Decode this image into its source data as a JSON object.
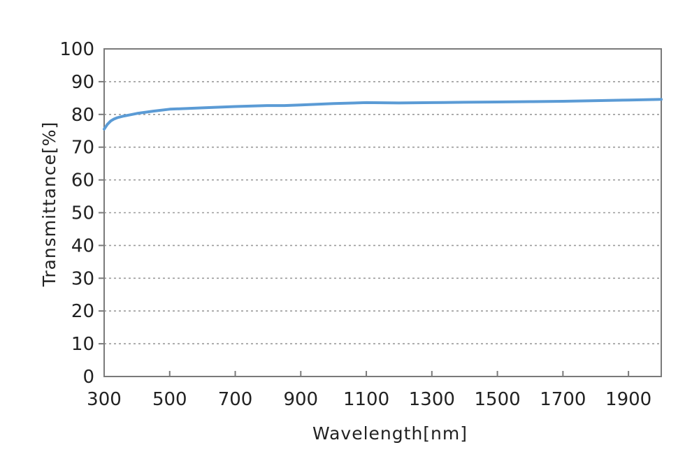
{
  "chart_data": {
    "type": "line",
    "title": "",
    "xlabel": "Wavelength[nm]",
    "ylabel": "Transmittance[%]",
    "xlim": [
      300,
      2000
    ],
    "ylim": [
      0,
      100
    ],
    "xticks": [
      300,
      500,
      700,
      900,
      1100,
      1300,
      1500,
      1700,
      1900
    ],
    "yticks": [
      0,
      10,
      20,
      30,
      40,
      50,
      60,
      70,
      80,
      90,
      100
    ],
    "grid": "horizontal dashed",
    "series": [
      {
        "color": "#5b9bd5",
        "x": [
          300,
          310,
          320,
          330,
          340,
          360,
          380,
          400,
          450,
          500,
          600,
          700,
          800,
          850,
          900,
          1000,
          1100,
          1200,
          1300,
          1400,
          1500,
          1600,
          1700,
          1800,
          1900,
          2000
        ],
        "y": [
          75.5,
          77.0,
          78.0,
          78.6,
          79.0,
          79.5,
          79.9,
          80.3,
          81.0,
          81.6,
          82.0,
          82.4,
          82.7,
          82.7,
          82.9,
          83.3,
          83.6,
          83.5,
          83.6,
          83.7,
          83.8,
          83.9,
          84.0,
          84.2,
          84.4,
          84.6
        ]
      }
    ]
  }
}
